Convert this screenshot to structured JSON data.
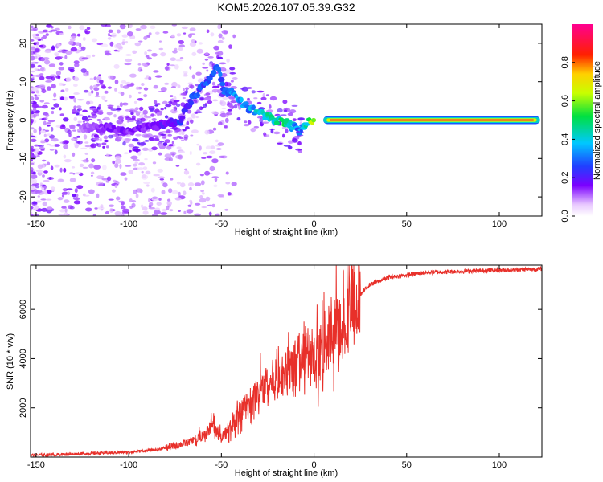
{
  "title": "KOM5.2026.107.05.39.G32",
  "chart_data": [
    {
      "type": "heatmap",
      "title": "KOM5.2026.107.05.39.G32",
      "xlabel": "Height of straight line (km)",
      "ylabel": "Frequency (Hz)",
      "xlim": [
        -153,
        123
      ],
      "ylim": [
        -25,
        25
      ],
      "xticks": [
        -150,
        -100,
        -50,
        0,
        50,
        100
      ],
      "yticks": [
        -20,
        -10,
        0,
        10,
        20
      ],
      "colorbar": {
        "label": "Normalized spectral amplitude",
        "range": [
          0,
          1
        ],
        "ticks": [
          0.0,
          0.2,
          0.4,
          0.6,
          0.8
        ],
        "tick_labels": [
          "0.0",
          "0.2",
          "0.4",
          "0.6",
          "0.8"
        ]
      },
      "ridge": {
        "x": [
          -120,
          -110,
          -100,
          -90,
          -80,
          -72,
          -68,
          -65,
          -60,
          -55,
          -52,
          -48,
          -45,
          -40,
          -35,
          -30,
          -25,
          -20,
          -15,
          -10,
          -8,
          -5,
          -2,
          0,
          10,
          30,
          60,
          90,
          120
        ],
        "y": [
          -2,
          -2,
          -3,
          -2,
          -1,
          0,
          4,
          6,
          9,
          12,
          14,
          7,
          8,
          5,
          3,
          2,
          1,
          0,
          -1,
          -2,
          -3,
          -1,
          0,
          0,
          0,
          0,
          0,
          0,
          0
        ],
        "amplitude": [
          0.15,
          0.2,
          0.2,
          0.2,
          0.25,
          0.3,
          0.3,
          0.35,
          0.35,
          0.35,
          0.35,
          0.4,
          0.4,
          0.45,
          0.45,
          0.5,
          0.55,
          0.6,
          0.6,
          0.45,
          0.4,
          0.5,
          0.7,
          0.85,
          0.95,
          0.95,
          0.95,
          0.95,
          0.95
        ]
      }
    },
    {
      "type": "line",
      "xlabel": "Height of straight line (km)",
      "ylabel": "SNR (10 * v/v)",
      "xlim": [
        -153,
        123
      ],
      "ylim": [
        0,
        7800
      ],
      "xticks": [
        -150,
        -100,
        -50,
        0,
        50,
        100
      ],
      "yticks": [
        2000,
        4000,
        6000
      ],
      "series": [
        {
          "name": "SNR",
          "color": "#e8302a",
          "x": [
            -153,
            -140,
            -120,
            -100,
            -85,
            -75,
            -68,
            -62,
            -58,
            -55,
            -50,
            -45,
            -40,
            -35,
            -30,
            -25,
            -20,
            -15,
            -10,
            -5,
            -2,
            0,
            5,
            10,
            15,
            20,
            25,
            30,
            40,
            50,
            60,
            80,
            100,
            123
          ],
          "y": [
            80,
            100,
            150,
            200,
            300,
            450,
            600,
            800,
            1000,
            1300,
            800,
            1200,
            1800,
            2200,
            2600,
            3000,
            3200,
            3400,
            3800,
            4200,
            4000,
            3600,
            4600,
            5000,
            5400,
            6000,
            6600,
            7000,
            7300,
            7400,
            7500,
            7550,
            7600,
            7650
          ]
        }
      ]
    }
  ]
}
